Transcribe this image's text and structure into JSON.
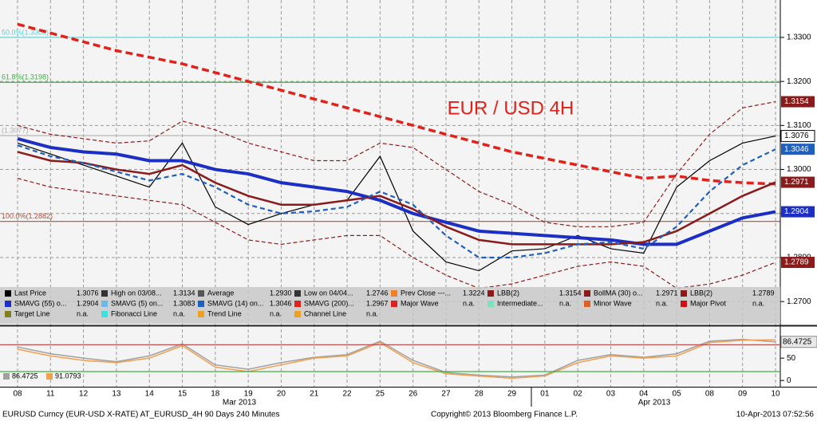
{
  "chart_data": [
    {
      "type": "line",
      "title": "EUR / USD 4H",
      "categories": [
        "08",
        "11",
        "12",
        "13",
        "14",
        "15",
        "18",
        "19",
        "20",
        "21",
        "22",
        "25",
        "26",
        "27",
        "28",
        "29",
        "01",
        "02",
        "03",
        "04",
        "05",
        "08",
        "09",
        "10"
      ],
      "ylim": [
        1.2646,
        1.3385
      ],
      "yticks": [
        {
          "value": 1.27,
          "label": "1.2700"
        },
        {
          "value": 1.28,
          "label": "1.2800"
        },
        {
          "value": 1.29,
          "label": "1.2900"
        },
        {
          "value": 1.3,
          "label": "1.3000"
        },
        {
          "value": 1.31,
          "label": "1.3100"
        },
        {
          "value": 1.32,
          "label": "1.3200"
        },
        {
          "value": 1.33,
          "label": "1.3300"
        }
      ],
      "grid": true,
      "levels": [
        {
          "label": "50.0%(1.3300)",
          "value": 1.33,
          "color": "#5fd3d3"
        },
        {
          "label": "61.8%(1.3198)",
          "value": 1.3198,
          "color": "#3cb043"
        },
        {
          "label": "(1.3077)",
          "value": 1.3077,
          "color": "#b0b0b0"
        },
        {
          "label": "100.0%(1.2882)",
          "value": 1.2882,
          "color": "#b0503c"
        }
      ],
      "series": [
        {
          "name": "Last Price",
          "color": "#000000",
          "style": "solid",
          "legend_value": "1.3076",
          "tag": "1.3076",
          "values": [
            1.306,
            1.3035,
            1.301,
            1.2985,
            1.296,
            1.306,
            1.2915,
            1.2875,
            1.29,
            1.292,
            1.293,
            1.303,
            1.286,
            1.279,
            1.277,
            1.2815,
            1.282,
            1.285,
            1.282,
            1.281,
            1.296,
            1.302,
            1.306,
            1.3076
          ]
        },
        {
          "name": "SMAVG (55) o...",
          "color": "#1c2fc4",
          "style": "thick",
          "legend_value": "1.2904",
          "tag": "1.2904",
          "values": [
            1.307,
            1.305,
            1.304,
            1.3035,
            1.302,
            1.302,
            1.3,
            1.299,
            1.297,
            1.296,
            1.295,
            1.293,
            1.29,
            1.288,
            1.286,
            1.2855,
            1.285,
            1.2845,
            1.284,
            1.283,
            1.283,
            1.286,
            1.289,
            1.2904
          ]
        },
        {
          "name": "SMAVG (200)...",
          "color": "#e0221b",
          "style": "dashed-thick",
          "legend_value": "1.2967",
          "values": [
            1.333,
            1.331,
            1.329,
            1.327,
            1.3255,
            1.324,
            1.322,
            1.32,
            1.318,
            1.316,
            1.314,
            1.312,
            1.31,
            1.308,
            1.306,
            1.304,
            1.3025,
            1.301,
            1.2995,
            1.298,
            1.2985,
            1.2975,
            1.297,
            1.2967
          ]
        },
        {
          "name": "BollMA (30) o...",
          "color": "#8b1a1a",
          "style": "medium",
          "legend_value": "1.2971",
          "tag": "1.2971",
          "values": [
            1.304,
            1.302,
            1.3015,
            1.3,
            1.299,
            1.301,
            1.297,
            1.294,
            1.292,
            1.292,
            1.293,
            1.294,
            1.291,
            1.287,
            1.284,
            1.283,
            1.283,
            1.283,
            1.283,
            1.2835,
            1.286,
            1.29,
            1.294,
            1.2971
          ]
        },
        {
          "name": "SMAVG (14) on...",
          "color": "#1f5fbf",
          "style": "dashed",
          "legend_value": "1.3046",
          "tag": "1.3046",
          "values": [
            1.3055,
            1.303,
            1.3015,
            1.2995,
            1.2975,
            1.299,
            1.296,
            1.292,
            1.29,
            1.2905,
            1.2915,
            1.295,
            1.292,
            1.285,
            1.28,
            1.28,
            1.281,
            1.283,
            1.2835,
            1.282,
            1.287,
            1.295,
            1.301,
            1.3046
          ]
        },
        {
          "name": "LBB(2)",
          "color": "#8b1a1a",
          "style": "dashed-thin",
          "legend_value": "1.3154",
          "tag": "1.3154",
          "values": [
            1.31,
            1.308,
            1.307,
            1.306,
            1.3065,
            1.311,
            1.309,
            1.306,
            1.304,
            1.302,
            1.302,
            1.306,
            1.305,
            1.3,
            1.295,
            1.292,
            1.288,
            1.287,
            1.287,
            1.288,
            1.299,
            1.308,
            1.314,
            1.3154
          ]
        },
        {
          "name": "LBB(2)",
          "color": "#8b1a1a",
          "style": "dashed-thin",
          "legend_value": "1.2789",
          "tag": "1.2789",
          "values": [
            1.298,
            1.296,
            1.295,
            1.294,
            1.293,
            1.292,
            1.288,
            1.284,
            1.283,
            1.284,
            1.285,
            1.285,
            1.28,
            1.276,
            1.273,
            1.274,
            1.276,
            1.278,
            1.279,
            1.278,
            1.273,
            1.274,
            1.276,
            1.2789
          ]
        }
      ],
      "legend_extra": [
        {
          "name": "High on 03/08...",
          "value": "1.3134",
          "color": "#333333"
        },
        {
          "name": "Average",
          "value": "1.2930",
          "color": "#555555"
        },
        {
          "name": "Low on 04/04...",
          "value": "1.2746",
          "color": "#333333"
        },
        {
          "name": "Prev Close ---...",
          "value": "1.3224",
          "color": "#f08020"
        },
        {
          "name": "SMAVG (5) on...",
          "value": "1.3083",
          "color": "#6fb7e8"
        },
        {
          "name": "Major Wave",
          "value": "n.a.",
          "color": "#e02020"
        },
        {
          "name": "Intermediate...",
          "value": "n.a.",
          "color": "#7fe0c0"
        },
        {
          "name": "Minor Wave",
          "value": "n.a.",
          "color": "#e06020"
        },
        {
          "name": "Major Pivot",
          "value": "n.a.",
          "color": "#d01010"
        },
        {
          "name": "Target Line",
          "value": "n.a.",
          "color": "#808020"
        },
        {
          "name": "Fibonacci Line",
          "value": "n.a.",
          "color": "#40e0e0"
        },
        {
          "name": "Trend Line",
          "value": "n.a.",
          "color": "#f0a020"
        },
        {
          "name": "Channel Line",
          "value": "n.a.",
          "color": "#f0a020"
        }
      ]
    },
    {
      "type": "line",
      "ylim": [
        -14,
        120
      ],
      "yticks": [
        0,
        50
      ],
      "levels": [
        {
          "value": 80,
          "color": "#c0504d"
        },
        {
          "value": 20,
          "color": "#3cb043"
        }
      ],
      "series": [
        {
          "color": "#a0a0a0",
          "legend_value": "86.4725",
          "tag": "86.4725",
          "values": [
            75,
            60,
            50,
            42,
            55,
            82,
            35,
            25,
            40,
            52,
            58,
            88,
            45,
            18,
            12,
            8,
            12,
            45,
            58,
            52,
            60,
            88,
            92,
            86.4725
          ]
        },
        {
          "color": "#f0a050",
          "legend_value": "91.0793",
          "values": [
            70,
            55,
            45,
            40,
            50,
            78,
            30,
            20,
            35,
            50,
            55,
            85,
            40,
            15,
            10,
            5,
            10,
            40,
            55,
            50,
            55,
            85,
            90,
            91.0793
          ]
        }
      ]
    }
  ],
  "months": [
    "Mar 2013",
    "Apr 2013"
  ],
  "footer": {
    "left": "EURUSD Curncy (EUR-USD X-RATE) AT_EURUSD_4H 90 Days 240 Minutes",
    "center": "Copyright© 2013 Bloomberg Finance L.P.",
    "right": "10-Apr-2013 07:52:56"
  }
}
